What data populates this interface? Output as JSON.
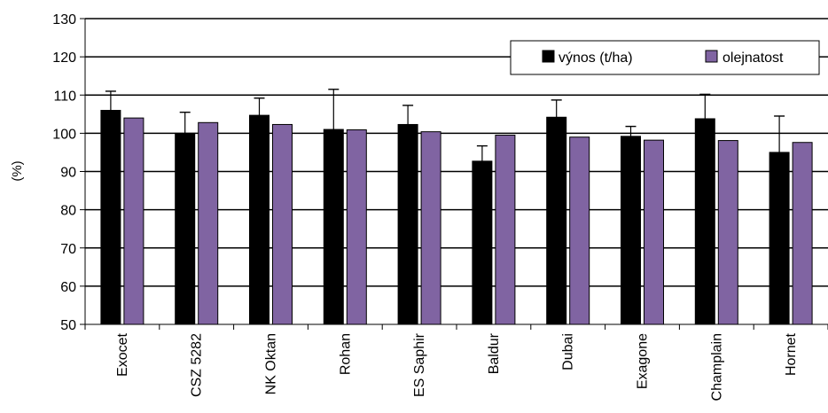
{
  "chart_data": {
    "type": "bar",
    "title": "",
    "xlabel": "",
    "ylabel": "(%)",
    "ylim": [
      50,
      130
    ],
    "yticks": [
      50,
      60,
      70,
      80,
      90,
      100,
      110,
      120,
      130
    ],
    "grid": true,
    "legend_position": "top-right",
    "categories": [
      "Exocet",
      "CSZ 5282",
      "NK Oktan",
      "Rohan",
      "ES Saphir",
      "Baldur",
      "Dubai",
      "Exagone",
      "Champlain",
      "Hornet"
    ],
    "series": [
      {
        "name": "výnos (t/ha)",
        "color": "#000000",
        "values": [
          106,
          100,
          104.7,
          101,
          102.3,
          92.7,
          104.2,
          99.2,
          103.8,
          95
        ],
        "error_upper": [
          111,
          105.5,
          109.2,
          111.5,
          107.3,
          96.7,
          108.7,
          101.8,
          110.2,
          104.5
        ]
      },
      {
        "name": "olejnatost",
        "color": "#8064A2",
        "values": [
          104,
          102.8,
          102.3,
          100.9,
          100.4,
          99.5,
          99,
          98.2,
          98.1,
          97.6
        ]
      }
    ]
  }
}
